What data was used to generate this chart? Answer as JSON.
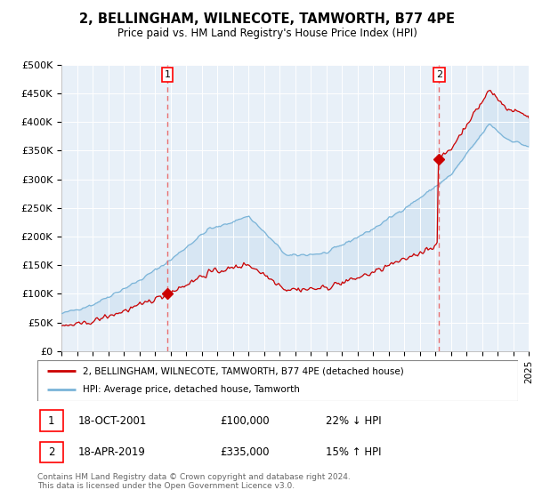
{
  "title": "2, BELLINGHAM, WILNECOTE, TAMWORTH, B77 4PE",
  "subtitle": "Price paid vs. HM Land Registry's House Price Index (HPI)",
  "plot_bg_color": "#e8f0f8",
  "ylim": [
    0,
    500000
  ],
  "yticks": [
    0,
    50000,
    100000,
    150000,
    200000,
    250000,
    300000,
    350000,
    400000,
    450000,
    500000
  ],
  "ytick_labels": [
    "£0",
    "£50K",
    "£100K",
    "£150K",
    "£200K",
    "£250K",
    "£300K",
    "£350K",
    "£400K",
    "£450K",
    "£500K"
  ],
  "x_start_year": 1995,
  "x_end_year": 2025,
  "hpi_color": "#7ab4d8",
  "price_color": "#cc0000",
  "fill_color": "#c8ddf0",
  "marker1_year": 2001.8,
  "marker1_price": 100000,
  "marker2_year": 2019.25,
  "marker2_price": 335000,
  "marker1_label": "1",
  "marker2_label": "2",
  "vline_color": "#e87070",
  "legend_label1": "2, BELLINGHAM, WILNECOTE, TAMWORTH, B77 4PE (detached house)",
  "legend_label2": "HPI: Average price, detached house, Tamworth",
  "annotation1_date": "18-OCT-2001",
  "annotation1_price": "£100,000",
  "annotation1_hpi": "22% ↓ HPI",
  "annotation2_date": "18-APR-2019",
  "annotation2_price": "£335,000",
  "annotation2_hpi": "15% ↑ HPI",
  "footer": "Contains HM Land Registry data © Crown copyright and database right 2024.\nThis data is licensed under the Open Government Licence v3.0."
}
